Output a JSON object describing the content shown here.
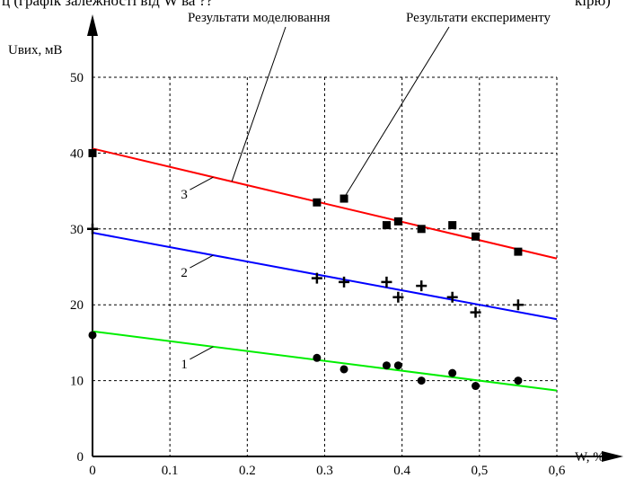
{
  "header_fragment": {
    "left": "ц (графік залежності від W ва ?? ",
    "right": "кірю)"
  },
  "chart_data": {
    "type": "scatter",
    "ylabel": "Uвих, мВ",
    "xlabel": "W, %",
    "xlim": [
      0,
      0.6
    ],
    "ylim": [
      0,
      50
    ],
    "x_ticks": [
      "0",
      "0.1",
      "0.2",
      "0.3",
      "0.4",
      "0,5",
      "0,6"
    ],
    "y_ticks": [
      "0",
      "10",
      "20",
      "30",
      "40",
      "50"
    ],
    "grid": true,
    "annotations": {
      "model": "Результати моделювання",
      "experiment": "Результати експерименту"
    },
    "series": [
      {
        "name": "1",
        "marker": "circle",
        "color": "#00ee00",
        "fit": {
          "x": [
            0,
            0.6
          ],
          "y": [
            16.5,
            8.7
          ]
        },
        "points": [
          {
            "x": 0,
            "y": 16
          },
          {
            "x": 0.29,
            "y": 13
          },
          {
            "x": 0.325,
            "y": 11.5
          },
          {
            "x": 0.38,
            "y": 12
          },
          {
            "x": 0.395,
            "y": 12
          },
          {
            "x": 0.425,
            "y": 10
          },
          {
            "x": 0.465,
            "y": 11
          },
          {
            "x": 0.495,
            "y": 9.3
          },
          {
            "x": 0.55,
            "y": 10
          }
        ]
      },
      {
        "name": "2",
        "marker": "plus",
        "color": "#0000ff",
        "fit": {
          "x": [
            0,
            0.6
          ],
          "y": [
            29.5,
            18.1
          ]
        },
        "points": [
          {
            "x": 0,
            "y": 30
          },
          {
            "x": 0.29,
            "y": 23.5
          },
          {
            "x": 0.325,
            "y": 23
          },
          {
            "x": 0.38,
            "y": 23
          },
          {
            "x": 0.395,
            "y": 21
          },
          {
            "x": 0.425,
            "y": 22.5
          },
          {
            "x": 0.465,
            "y": 21
          },
          {
            "x": 0.495,
            "y": 19
          },
          {
            "x": 0.55,
            "y": 20
          }
        ]
      },
      {
        "name": "3",
        "marker": "square",
        "color": "#ff0000",
        "fit": {
          "x": [
            0,
            0.6
          ],
          "y": [
            40.6,
            26.1
          ]
        },
        "points": [
          {
            "x": 0,
            "y": 40
          },
          {
            "x": 0.29,
            "y": 33.5
          },
          {
            "x": 0.325,
            "y": 34
          },
          {
            "x": 0.38,
            "y": 30.5
          },
          {
            "x": 0.395,
            "y": 31
          },
          {
            "x": 0.425,
            "y": 30
          },
          {
            "x": 0.465,
            "y": 30.5
          },
          {
            "x": 0.495,
            "y": 29
          },
          {
            "x": 0.55,
            "y": 27
          }
        ]
      }
    ]
  }
}
